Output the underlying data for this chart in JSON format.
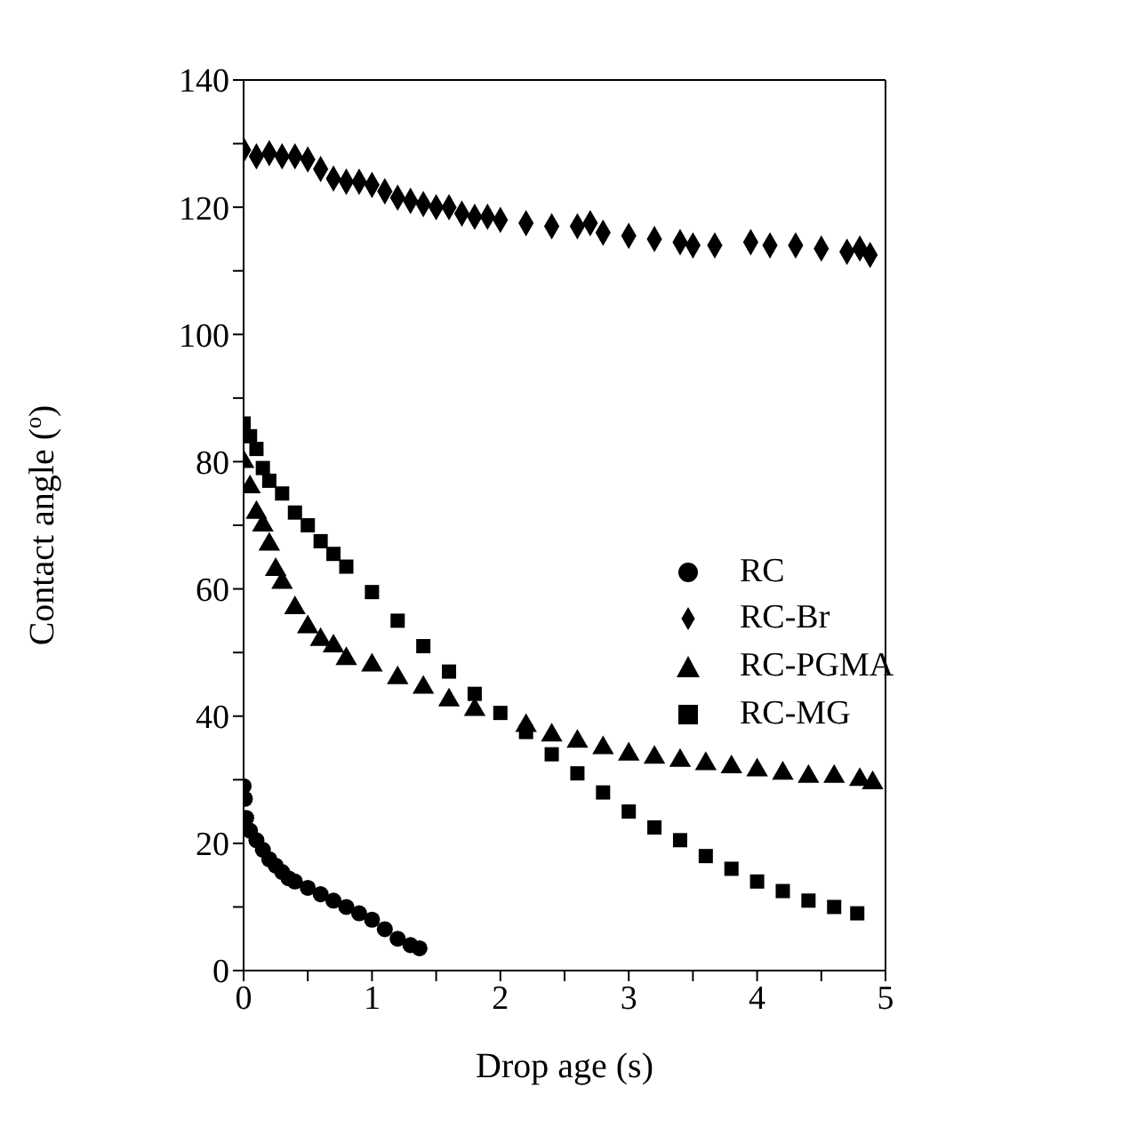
{
  "chart_data": {
    "type": "scatter",
    "xlabel": "Drop age (s)",
    "ylabel": "Contact angle ($^{o}$)",
    "xlim": [
      0,
      5
    ],
    "ylim": [
      0,
      140
    ],
    "xticks": [
      0,
      {
        "value": 0.5,
        "label": null
      },
      1,
      {
        "value": 1.5,
        "label": null
      },
      2,
      {
        "value": 2.5,
        "label": null
      },
      3,
      {
        "value": 3.5,
        "label": null
      },
      4,
      {
        "value": 4.5,
        "label": null
      },
      5
    ],
    "yticks": [
      0,
      {
        "value": 10,
        "label": null
      },
      20,
      {
        "value": 30,
        "label": null
      },
      40,
      {
        "value": 50,
        "label": null
      },
      60,
      {
        "value": 70,
        "label": null
      },
      80,
      {
        "value": 90,
        "label": null
      },
      100,
      {
        "value": 110,
        "label": null
      },
      120,
      {
        "value": 130,
        "label": null
      },
      140
    ],
    "legend": "right",
    "series": [
      {
        "name": "RC",
        "color": "#000000",
        "marker": "circle",
        "x": [
          0,
          0.01,
          0.02,
          0.05,
          0.1,
          0.15,
          0.2,
          0.25,
          0.3,
          0.35,
          0.4,
          0.5,
          0.6,
          0.7,
          0.8,
          0.9,
          1.0,
          1.1,
          1.2,
          1.3,
          1.37
        ],
        "values": [
          29,
          27,
          24,
          22,
          20.5,
          19,
          17.5,
          16.5,
          15.5,
          14.5,
          14,
          13,
          12,
          11,
          10,
          9,
          8,
          6.5,
          5,
          4,
          3.5
        ]
      },
      {
        "name": "RC-Br",
        "color": "#000000",
        "marker": "diamond",
        "x": [
          0,
          0.1,
          0.2,
          0.3,
          0.4,
          0.5,
          0.6,
          0.7,
          0.8,
          0.9,
          1.0,
          1.1,
          1.2,
          1.3,
          1.4,
          1.5,
          1.6,
          1.7,
          1.8,
          1.9,
          2.0,
          2.2,
          2.4,
          2.6,
          2.7,
          2.8,
          3.0,
          3.2,
          3.4,
          3.5,
          3.67,
          3.95,
          4.1,
          4.3,
          4.5,
          4.7,
          4.8,
          4.88
        ],
        "values": [
          129,
          128,
          128.5,
          128,
          128,
          127.5,
          126,
          124.5,
          124,
          124,
          123.5,
          122.5,
          121.5,
          121,
          120.5,
          120,
          120,
          119,
          118.5,
          118.5,
          118,
          117.5,
          117,
          117,
          117.5,
          116,
          115.5,
          115,
          114.5,
          114,
          114,
          114.5,
          114,
          114,
          113.5,
          113,
          113.5,
          112.5
        ]
      },
      {
        "name": "RC-PGMA",
        "color": "#000000",
        "marker": "triangle",
        "x": [
          0,
          0.05,
          0.1,
          0.15,
          0.2,
          0.25,
          0.3,
          0.4,
          0.5,
          0.6,
          0.7,
          0.8,
          1.0,
          1.2,
          1.4,
          1.6,
          1.8,
          2.0,
          2.2,
          2.4,
          2.6,
          2.8,
          3.0,
          3.2,
          3.4,
          3.6,
          3.8,
          4.0,
          4.2,
          4.4,
          4.6,
          4.8,
          4.9
        ],
        "values": [
          80,
          76,
          72,
          70,
          67,
          63,
          61,
          57,
          54,
          52,
          51,
          49,
          48,
          46,
          44.5,
          42.5,
          41,
          null,
          38.5,
          37,
          36,
          35,
          34,
          33.5,
          33,
          32.5,
          32,
          31.5,
          31,
          30.5,
          30.5,
          30,
          29.5
        ]
      },
      {
        "name": "RC-MG",
        "color": "#000000",
        "marker": "square",
        "x": [
          0,
          0.05,
          0.1,
          0.15,
          0.2,
          0.3,
          0.4,
          0.5,
          0.6,
          0.7,
          0.8,
          1.0,
          1.2,
          1.4,
          1.6,
          1.8,
          2.0,
          2.2,
          2.4,
          2.6,
          2.8,
          3.0,
          3.2,
          3.4,
          3.6,
          3.8,
          4.0,
          4.2,
          4.4,
          4.6,
          4.78
        ],
        "values": [
          86,
          84,
          82,
          79,
          77,
          75,
          72,
          70,
          67.5,
          65.5,
          63.5,
          59.5,
          55,
          51,
          47,
          43.5,
          40.5,
          37.5,
          34,
          31,
          28,
          25,
          22.5,
          20.5,
          18,
          16,
          14,
          12.5,
          11,
          10,
          9
        ]
      }
    ]
  }
}
